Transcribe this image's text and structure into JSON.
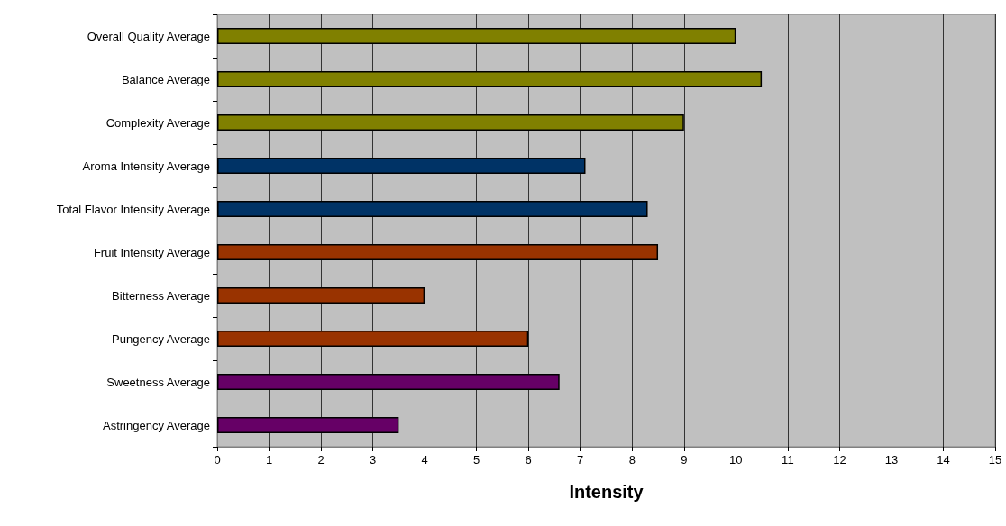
{
  "chart_data": {
    "type": "bar",
    "orientation": "horizontal",
    "xlabel": "Intensity",
    "categories": [
      "Overall Quality Average",
      "Balance Average",
      "Complexity Average",
      "Aroma Intensity Average",
      "Total Flavor Intensity Average",
      "Fruit Intensity Average",
      "Bitterness Average",
      "Pungency Average",
      "Sweetness Average",
      "Astringency Average"
    ],
    "values": [
      10,
      10.5,
      9,
      7.1,
      8.3,
      8.5,
      4,
      6,
      6.6,
      3.5
    ],
    "colors": [
      "#808000",
      "#808000",
      "#808000",
      "#003366",
      "#003366",
      "#993300",
      "#993300",
      "#993300",
      "#660066",
      "#660066"
    ],
    "xlim": [
      0,
      15
    ],
    "xticks": [
      0,
      1,
      2,
      3,
      4,
      5,
      6,
      7,
      8,
      9,
      10,
      11,
      12,
      13,
      14,
      15
    ],
    "grid": "x"
  }
}
